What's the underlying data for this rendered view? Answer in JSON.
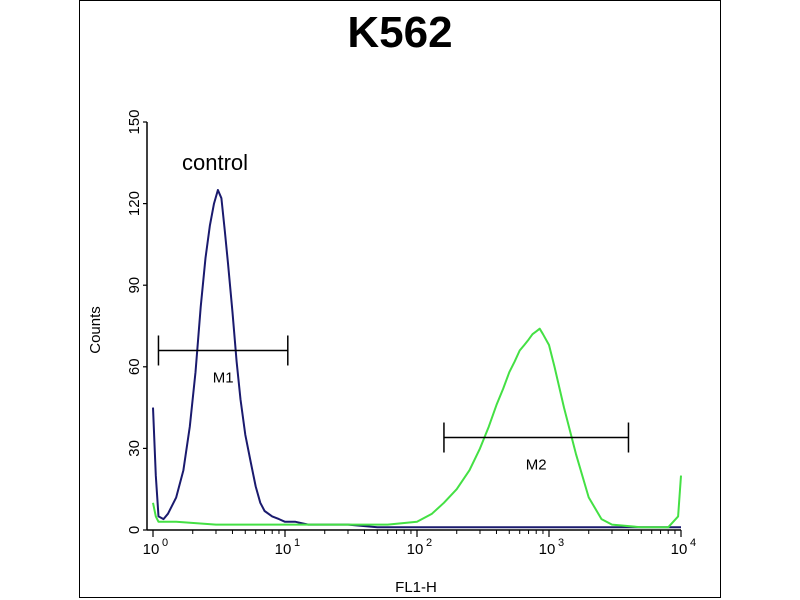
{
  "chart_data": {
    "type": "line",
    "title": "K562",
    "xlabel": "FL1-H",
    "ylabel": "Counts",
    "x_scale": "log",
    "xlim": [
      1,
      10000
    ],
    "ylim": [
      0,
      150
    ],
    "x_ticks": [
      {
        "base": "10",
        "exp": "0"
      },
      {
        "base": "10",
        "exp": "1"
      },
      {
        "base": "10",
        "exp": "2"
      },
      {
        "base": "10",
        "exp": "3"
      },
      {
        "base": "10",
        "exp": "4"
      }
    ],
    "x_tick_values": [
      1,
      10,
      100,
      1000,
      10000
    ],
    "y_ticks": [
      "0",
      "30",
      "60",
      "90",
      "120",
      "150"
    ],
    "y_tick_values": [
      0,
      30,
      60,
      90,
      120,
      150
    ],
    "grid": false,
    "annotation": "control",
    "series": [
      {
        "name": "control",
        "color": "#1a1a6e",
        "x": [
          1,
          1.05,
          1.1,
          1.2,
          1.3,
          1.5,
          1.7,
          1.9,
          2.1,
          2.3,
          2.5,
          2.7,
          2.9,
          3.1,
          3.3,
          3.5,
          3.7,
          4.0,
          4.3,
          4.6,
          5.0,
          5.5,
          6.0,
          6.5,
          7.0,
          8.0,
          9.0,
          10,
          12,
          15,
          20,
          30,
          50,
          80,
          120,
          200,
          400,
          1000,
          3000,
          10000
        ],
        "y": [
          45,
          20,
          5,
          4,
          6,
          12,
          22,
          38,
          58,
          82,
          100,
          112,
          120,
          125,
          122,
          110,
          98,
          80,
          62,
          48,
          35,
          25,
          16,
          10,
          7,
          5,
          4,
          3,
          3,
          2,
          2,
          2,
          1,
          1,
          1,
          1,
          1,
          1,
          1,
          1
        ]
      },
      {
        "name": "",
        "color": "#44e044",
        "x": [
          1,
          1.05,
          1.1,
          1.5,
          3,
          10,
          30,
          60,
          100,
          130,
          160,
          200,
          250,
          300,
          350,
          400,
          450,
          500,
          550,
          600,
          650,
          700,
          750,
          800,
          850,
          900,
          1000,
          1100,
          1300,
          1600,
          2000,
          2500,
          3000,
          5000,
          8000,
          9500,
          10000
        ],
        "y": [
          10,
          5,
          3,
          3,
          2,
          2,
          2,
          2,
          3,
          6,
          10,
          15,
          22,
          30,
          38,
          46,
          52,
          58,
          62,
          66,
          68,
          70,
          72,
          73,
          74,
          72,
          68,
          60,
          45,
          28,
          12,
          4,
          2,
          1,
          1,
          5,
          20
        ]
      }
    ],
    "markers": [
      {
        "name": "M1",
        "x_start": 1.1,
        "x_end": 10.5,
        "y": 66
      },
      {
        "name": "M2",
        "x_start": 160,
        "x_end": 4000,
        "y": 34
      }
    ]
  }
}
